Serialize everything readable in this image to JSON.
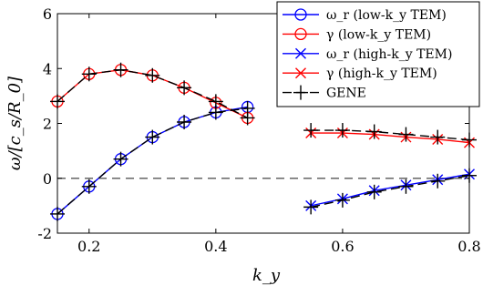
{
  "chart_data": {
    "type": "line",
    "xlabel": "k_y",
    "ylabel": "ω/[c_s/R_0]",
    "xlim": [
      0.15,
      0.8
    ],
    "ylim": [
      -2,
      6
    ],
    "xticks": [
      0.2,
      0.4,
      0.6,
      0.8
    ],
    "yticks": [
      -2,
      0,
      2,
      4,
      6
    ],
    "xtick_labels": [
      "0.2",
      "0.4",
      "0.6",
      "0.8"
    ],
    "ytick_labels": [
      "-2",
      "0",
      "2",
      "4",
      "6"
    ],
    "grid": false,
    "legend_position": "top-right",
    "reference_line": {
      "y": 0,
      "style": "dashed",
      "color": "#666666"
    },
    "series": [
      {
        "name": "ω_r (low-k_y TEM)",
        "color": "#0000ff",
        "marker": "circle",
        "x": [
          0.15,
          0.2,
          0.25,
          0.3,
          0.35,
          0.4,
          0.45
        ],
        "y": [
          -1.3,
          -0.3,
          0.7,
          1.5,
          2.05,
          2.4,
          2.6
        ]
      },
      {
        "name": "γ (low-k_y TEM)",
        "color": "#ff0000",
        "marker": "circle",
        "x": [
          0.15,
          0.2,
          0.25,
          0.3,
          0.35,
          0.4,
          0.45
        ],
        "y": [
          2.8,
          3.8,
          3.95,
          3.75,
          3.3,
          2.75,
          2.2
        ]
      },
      {
        "name": "ω_r (high-k_y TEM)",
        "color": "#0000ff",
        "marker": "x",
        "x": [
          0.55,
          0.6,
          0.65,
          0.7,
          0.75,
          0.8
        ],
        "y": [
          -1.0,
          -0.75,
          -0.45,
          -0.25,
          -0.05,
          0.15
        ]
      },
      {
        "name": "γ (high-k_y TEM)",
        "color": "#ff0000",
        "marker": "x",
        "x": [
          0.55,
          0.6,
          0.65,
          0.7,
          0.75,
          0.8
        ],
        "y": [
          1.65,
          1.65,
          1.6,
          1.5,
          1.42,
          1.3
        ]
      },
      {
        "name": "GENE",
        "color": "#000000",
        "marker": "plus",
        "dashed": true,
        "segments": [
          {
            "x": [
              0.15,
              0.2,
              0.25,
              0.3,
              0.35,
              0.4,
              0.45
            ],
            "y": [
              -1.3,
              -0.3,
              0.7,
              1.5,
              2.05,
              2.4,
              2.55
            ]
          },
          {
            "x": [
              0.15,
              0.2,
              0.25,
              0.3,
              0.35,
              0.4,
              0.45
            ],
            "y": [
              2.8,
              3.8,
              3.95,
              3.75,
              3.3,
              2.8,
              2.2
            ]
          },
          {
            "x": [
              0.55,
              0.6,
              0.65,
              0.7,
              0.75,
              0.8
            ],
            "y": [
              -1.05,
              -0.8,
              -0.5,
              -0.3,
              -0.1,
              0.1
            ]
          },
          {
            "x": [
              0.55,
              0.6,
              0.65,
              0.7,
              0.75,
              0.8
            ],
            "y": [
              1.75,
              1.75,
              1.7,
              1.6,
              1.5,
              1.4
            ]
          }
        ]
      }
    ]
  }
}
